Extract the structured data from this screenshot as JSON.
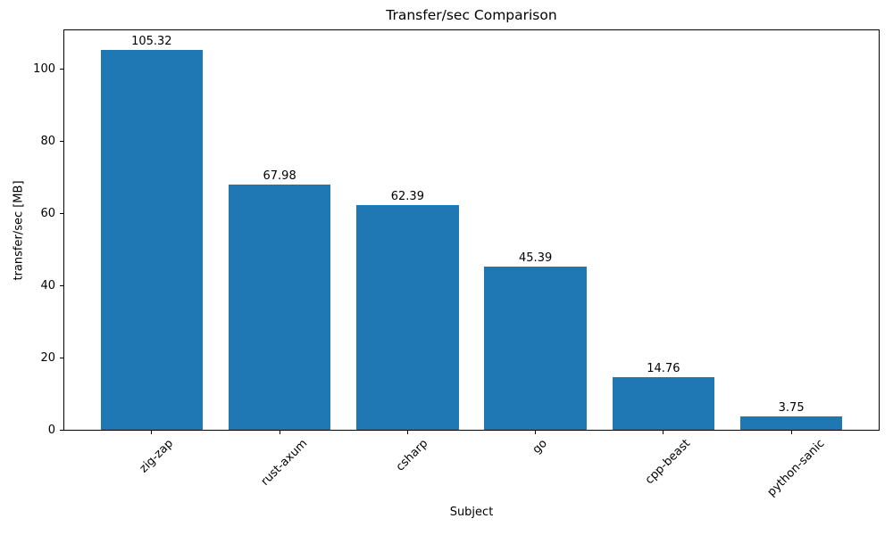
{
  "chart_data": {
    "type": "bar",
    "title": "Transfer/sec Comparison",
    "xlabel": "Subject",
    "ylabel": "transfer/sec [MB]",
    "categories": [
      "zig-zap",
      "rust-axum",
      "csharp",
      "go",
      "cpp-beast",
      "python-sanic"
    ],
    "values": [
      105.32,
      67.98,
      62.39,
      45.39,
      14.76,
      3.75
    ],
    "bar_labels": [
      "105.32",
      "67.98",
      "62.39",
      "45.39",
      "14.76",
      "3.75"
    ],
    "yticks": [
      0,
      20,
      40,
      60,
      80,
      100
    ],
    "ylim": [
      0,
      110.9
    ],
    "grid": false,
    "legend": null,
    "bar_color": "#1f77b4",
    "axis_color": "#000000",
    "text_color": "#000000"
  }
}
